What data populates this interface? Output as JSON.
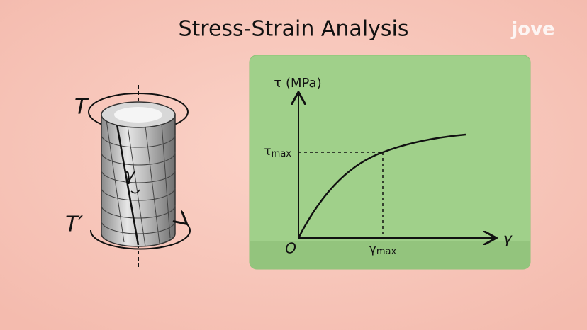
{
  "title": "Stress-Strain Analysis",
  "logo": "jove",
  "specimen": {
    "torque_top": "T",
    "torque_bottom": "T′",
    "shear_angle": "γ"
  },
  "graph": {
    "y_axis_label": "τ (MPa)",
    "x_axis_label": "γ",
    "origin": "O",
    "tau_max": {
      "symbol": "τ",
      "subscript": "max"
    },
    "gamma_max": {
      "symbol": "γ",
      "subscript": "max"
    }
  }
}
